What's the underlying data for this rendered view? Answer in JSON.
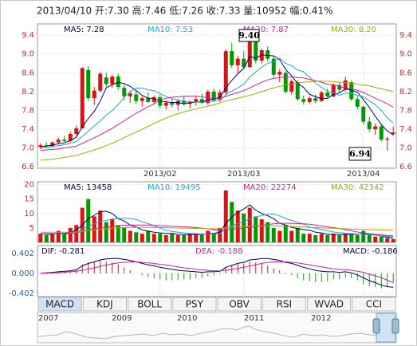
{
  "header": "2013/04/10 开:7.30 高:7.46 低:7.26 收:7.33 量:10952 幅:0.41%",
  "chart_data": [
    {
      "type": "candlestick",
      "categories": [
        null,
        null,
        null,
        null,
        null,
        null,
        null,
        null,
        null,
        null,
        null,
        null,
        null,
        null,
        null,
        null,
        null,
        null,
        null,
        null,
        "2013/02",
        null,
        null,
        null,
        null,
        null,
        null,
        null,
        null,
        null,
        null,
        null,
        null,
        null,
        "2013/03",
        null,
        null,
        null,
        null,
        null,
        null,
        null,
        null,
        null,
        null,
        null,
        null,
        null,
        null,
        null,
        null,
        null,
        null,
        null,
        "2013/04",
        null,
        null,
        null,
        null,
        null
      ],
      "open": [
        7.02,
        7.06,
        7.04,
        7.12,
        7.18,
        7.15,
        7.3,
        7.42,
        8.66,
        8.06,
        8.22,
        8.5,
        8.36,
        8.52,
        8.28,
        8.1,
        8.14,
        8.0,
        8.06,
        7.98,
        8.08,
        7.9,
        7.96,
        7.92,
        8.0,
        7.94,
        7.98,
        8.04,
        7.96,
        8.2,
        8.02,
        8.18,
        9.06,
        8.76,
        8.9,
        8.72,
        9.3,
        8.86,
        9.08,
        8.9,
        8.56,
        8.6,
        8.2,
        8.4,
        8.04,
        7.98,
        8.06,
        8.0,
        8.18,
        8.1,
        8.34,
        8.24,
        8.4,
        8.04,
        7.88,
        7.56,
        7.4,
        7.46,
        7.18,
        7.3
      ],
      "high": [
        7.1,
        7.12,
        7.14,
        7.22,
        7.26,
        7.34,
        7.48,
        8.72,
        8.74,
        8.3,
        8.62,
        8.6,
        8.56,
        8.58,
        8.34,
        8.22,
        8.2,
        8.1,
        8.18,
        8.12,
        8.14,
        8.02,
        8.06,
        8.04,
        8.1,
        8.02,
        8.12,
        8.16,
        8.24,
        8.26,
        8.24,
        9.1,
        9.24,
        8.96,
        9.06,
        9.4,
        9.36,
        9.12,
        9.16,
        8.96,
        8.68,
        8.64,
        8.46,
        8.44,
        8.12,
        8.1,
        8.14,
        8.22,
        8.26,
        8.38,
        8.4,
        8.52,
        8.44,
        8.1,
        7.9,
        7.66,
        7.52,
        7.5,
        7.24,
        7.46
      ],
      "low": [
        6.98,
        7.0,
        7.02,
        7.08,
        7.12,
        7.12,
        7.26,
        7.42,
        8.0,
        7.92,
        8.18,
        8.3,
        8.28,
        8.24,
        8.02,
        7.96,
        7.94,
        7.88,
        7.96,
        7.92,
        7.84,
        7.82,
        7.86,
        7.8,
        7.9,
        7.84,
        7.9,
        7.94,
        7.92,
        7.98,
        7.98,
        8.14,
        8.7,
        8.6,
        8.68,
        8.7,
        8.8,
        8.8,
        8.84,
        8.5,
        8.4,
        8.16,
        8.14,
        8.0,
        7.92,
        7.94,
        7.96,
        7.98,
        8.06,
        8.08,
        8.18,
        8.2,
        8.0,
        7.82,
        7.5,
        7.34,
        7.28,
        7.14,
        6.94,
        7.26
      ],
      "close": [
        7.06,
        7.04,
        7.12,
        7.18,
        7.15,
        7.3,
        7.42,
        8.7,
        8.06,
        8.22,
        8.58,
        8.36,
        8.52,
        8.3,
        8.1,
        8.16,
        8.0,
        8.06,
        7.98,
        8.08,
        7.9,
        7.96,
        7.92,
        8.0,
        7.94,
        7.98,
        8.04,
        7.96,
        8.2,
        8.02,
        8.18,
        9.06,
        8.76,
        8.9,
        8.72,
        9.3,
        8.86,
        9.08,
        8.9,
        8.56,
        8.62,
        8.2,
        8.42,
        8.04,
        7.98,
        8.06,
        8.0,
        8.18,
        8.1,
        8.34,
        8.24,
        8.44,
        8.04,
        7.88,
        7.56,
        7.4,
        7.46,
        7.18,
        7.2,
        7.33
      ],
      "up_color": "#e01010",
      "down_color": "#009a00",
      "series": [
        {
          "name": "MA5",
          "label": "MA5: 7.28",
          "color": "#000066",
          "values": [
            7.03,
            7.04,
            7.06,
            7.09,
            7.11,
            7.16,
            7.23,
            7.45,
            7.63,
            7.78,
            8.0,
            8.28,
            8.35,
            8.4,
            8.37,
            8.31,
            8.22,
            8.12,
            8.06,
            8.06,
            8.0,
            7.98,
            7.97,
            7.97,
            7.94,
            7.96,
            7.98,
            7.98,
            8.02,
            8.04,
            8.08,
            8.28,
            8.44,
            8.58,
            8.7,
            8.95,
            8.91,
            8.98,
            8.97,
            8.96,
            8.88,
            8.67,
            8.54,
            8.37,
            8.29,
            8.14,
            8.09,
            8.05,
            8.06,
            8.14,
            8.17,
            8.26,
            8.23,
            8.19,
            8.03,
            7.86,
            7.67,
            7.5,
            7.36,
            7.28
          ]
        },
        {
          "name": "MA10",
          "label": "MA10: 7.53",
          "color": "#1aa8d8",
          "values": [
            7.0,
            7.01,
            7.03,
            7.05,
            7.07,
            7.1,
            7.14,
            7.25,
            7.36,
            7.47,
            7.58,
            7.7,
            7.8,
            7.92,
            8.08,
            8.2,
            8.28,
            8.27,
            8.24,
            8.22,
            8.16,
            8.1,
            8.05,
            8.02,
            8.0,
            7.98,
            7.98,
            7.97,
            7.99,
            8.0,
            8.03,
            8.13,
            8.21,
            8.28,
            8.36,
            8.51,
            8.62,
            8.72,
            8.8,
            8.84,
            8.91,
            8.8,
            8.75,
            8.66,
            8.62,
            8.51,
            8.38,
            8.29,
            8.21,
            8.17,
            8.12,
            8.17,
            8.16,
            8.12,
            8.09,
            8.0,
            7.92,
            7.8,
            7.64,
            7.53
          ]
        },
        {
          "name": "MA20",
          "label": "MA20: 7.87",
          "color": "#d0209a",
          "values": [
            6.95,
            6.96,
            6.97,
            6.98,
            7.0,
            7.02,
            7.04,
            7.1,
            7.16,
            7.22,
            7.28,
            7.35,
            7.42,
            7.5,
            7.58,
            7.66,
            7.74,
            7.81,
            7.88,
            7.94,
            8.02,
            8.06,
            8.08,
            8.09,
            8.1,
            8.1,
            8.1,
            8.09,
            8.07,
            8.06,
            8.05,
            8.1,
            8.14,
            8.18,
            8.22,
            8.28,
            8.34,
            8.4,
            8.45,
            8.48,
            8.5,
            8.51,
            8.51,
            8.5,
            8.49,
            8.46,
            8.43,
            8.4,
            8.36,
            8.34,
            8.31,
            8.28,
            8.26,
            8.23,
            8.18,
            8.12,
            8.06,
            8.0,
            7.94,
            7.87
          ]
        },
        {
          "name": "MA30",
          "label": "MA30: 8.20",
          "color": "#a8a800",
          "values": [
            6.74,
            6.75,
            6.76,
            6.78,
            6.8,
            6.82,
            6.84,
            6.88,
            6.92,
            6.96,
            7.0,
            7.05,
            7.1,
            7.16,
            7.22,
            7.28,
            7.34,
            7.4,
            7.46,
            7.52,
            7.58,
            7.64,
            7.69,
            7.73,
            7.77,
            7.8,
            7.83,
            7.86,
            7.89,
            7.92,
            7.96,
            8.0,
            8.03,
            8.06,
            8.09,
            8.12,
            8.16,
            8.2,
            8.24,
            8.28,
            8.31,
            8.34,
            8.36,
            8.38,
            8.4,
            8.41,
            8.42,
            8.42,
            8.42,
            8.41,
            8.4,
            8.39,
            8.38,
            8.36,
            8.34,
            8.32,
            8.29,
            8.26,
            8.23,
            8.2
          ]
        }
      ],
      "annotations": [
        {
          "text": "9.40"
        },
        {
          "text": "6.94"
        }
      ],
      "ylim": [
        6.57,
        9.64
      ],
      "yticks": [
        6.6,
        {
          "value": 7,
          "label": "7.0"
        },
        7.4,
        7.8,
        8.2,
        8.6,
        {
          "value": 9,
          "label": "9.0"
        },
        9.4
      ],
      "right_axis": true,
      "grid": true,
      "tick_color": "#c03030"
    },
    {
      "type": "bar",
      "values": [
        3,
        2.5,
        3,
        4,
        3,
        5,
        6,
        12,
        15,
        9,
        11,
        7,
        8,
        6,
        5,
        4,
        3.5,
        3,
        4,
        3,
        3,
        2.5,
        3,
        2.5,
        2.5,
        3,
        3,
        2.5,
        4,
        3,
        5,
        18,
        14,
        11,
        10,
        12,
        9,
        8,
        7,
        5,
        4,
        6,
        4,
        5,
        3,
        3,
        2.5,
        3,
        2.5,
        3,
        2.5,
        3,
        3,
        2.5,
        4,
        3,
        2,
        2,
        1.5,
        1.1
      ],
      "up_color": "#e01010",
      "down_color": "#009a00",
      "series": [
        {
          "name": "MA5",
          "label": "MA5: 13458",
          "color": "#000066",
          "values": [
            3,
            2.8,
            2.8,
            3.1,
            3.1,
            3.5,
            4.2,
            6,
            8.2,
            9.4,
            10.6,
            10.8,
            10,
            8.2,
            7.4,
            6,
            5.3,
            4.3,
            3.9,
            3.5,
            3.3,
            3.1,
            3.1,
            2.8,
            2.7,
            2.7,
            2.8,
            2.7,
            3,
            3.1,
            3.5,
            6.6,
            8.8,
            10.4,
            11.6,
            13,
            11.2,
            10,
            9.2,
            8.2,
            6.6,
            6,
            5.2,
            4.8,
            4.4,
            4.2,
            3.5,
            3.3,
            2.8,
            2.8,
            2.7,
            2.8,
            2.8,
            2.8,
            3,
            2.9,
            2.6,
            2.2,
            1.8,
            1.35
          ]
        },
        {
          "name": "MA10",
          "label": "MA10: 19495",
          "color": "#1aa8d8",
          "values": [
            3,
            3,
            3,
            3,
            3,
            3.2,
            3.5,
            4.5,
            5.6,
            6.4,
            7.3,
            7.6,
            8.1,
            8.3,
            8.4,
            8.3,
            7.9,
            7.1,
            6.5,
            5.8,
            4.9,
            4.2,
            3.8,
            3.5,
            3.3,
            3.1,
            3,
            2.9,
            2.9,
            2.9,
            3.1,
            4.6,
            5.8,
            6.5,
            7.2,
            8.2,
            8.8,
            9.3,
            9.7,
            9.8,
            9.2,
            8.3,
            7.6,
            7,
            6.3,
            5.3,
            4.9,
            4.4,
            4,
            3.6,
            3.4,
            3.1,
            3,
            2.9,
            2.8,
            2.7,
            2.5,
            2.3,
            2.1,
            1.95
          ]
        },
        {
          "name": "MA20",
          "label": "MA20: 22274",
          "color": "#d0209a",
          "values": [
            3,
            3,
            3,
            3,
            3,
            3.1,
            3.3,
            3.8,
            4.3,
            4.7,
            5.1,
            5.3,
            5.6,
            5.8,
            5.9,
            6,
            6,
            6,
            6,
            5.9,
            5.8,
            5.7,
            5.6,
            5.5,
            5.4,
            5.3,
            5.1,
            4.9,
            4.7,
            4.4,
            4.1,
            4.3,
            4.6,
            4.8,
            5,
            5.3,
            5.6,
            5.9,
            6.2,
            6.4,
            6.6,
            6.6,
            6.6,
            6.5,
            6.4,
            6.3,
            6,
            5.7,
            5.4,
            5.1,
            4.8,
            4.4,
            4,
            3.6,
            3.3,
            3,
            2.8,
            2.6,
            2.4,
            2.23
          ]
        },
        {
          "name": "MA30",
          "label": "MA30: 42342",
          "color": "#a8a800",
          "values": [
            3.5,
            3.5,
            3.5,
            3.5,
            3.5,
            3.5,
            3.6,
            3.8,
            4.1,
            4.3,
            4.5,
            4.7,
            4.9,
            5,
            5.1,
            5.2,
            5.2,
            5.2,
            5.2,
            5.2,
            5.1,
            5.1,
            5,
            5,
            4.9,
            4.9,
            4.8,
            4.8,
            4.7,
            4.7,
            4.7,
            5,
            5.2,
            5.4,
            5.5,
            5.6,
            5.7,
            5.7,
            5.7,
            5.7,
            5.6,
            5.6,
            5.5,
            5.4,
            5.3,
            5.2,
            5.1,
            5,
            4.9,
            4.9,
            4.8,
            4.7,
            4.6,
            4.6,
            4.5,
            4.4,
            4.4,
            4.3,
            4.3,
            4.23
          ]
        }
      ],
      "ylim": [
        0,
        21
      ],
      "yticks": [
        5,
        10,
        15,
        20
      ],
      "grid": true,
      "tick_color": "#c03030"
    },
    {
      "type": "macd",
      "histogram": [
        0,
        0.02,
        0.02,
        0.04,
        0.04,
        0.04,
        0.06,
        0.18,
        0.22,
        0.24,
        0.26,
        0.24,
        0.22,
        0.18,
        0.12,
        0.06,
        0,
        -0.04,
        -0.08,
        -0.1,
        -0.12,
        -0.14,
        -0.14,
        -0.14,
        -0.12,
        -0.12,
        -0.1,
        -0.1,
        -0.06,
        -0.04,
        -0.02,
        0.12,
        0.16,
        0.2,
        0.2,
        0.24,
        0.22,
        0.2,
        0.16,
        0.1,
        0.06,
        -0.02,
        -0.04,
        -0.1,
        -0.14,
        -0.16,
        -0.18,
        -0.18,
        -0.16,
        -0.12,
        -0.12,
        -0.08,
        -0.1,
        -0.14,
        -0.22,
        -0.26,
        -0.28,
        -0.3,
        -0.26,
        -0.186
      ],
      "histogram_label": "MACD: -0.186",
      "up_color": "#c02020",
      "down_color": "#10a010",
      "series": [
        {
          "name": "DIF",
          "label": "DIF: -0.281",
          "color": "#000066",
          "values": [
            0,
            0.01,
            0.02,
            0.03,
            0.04,
            0.05,
            0.07,
            0.15,
            0.2,
            0.23,
            0.27,
            0.29,
            0.3,
            0.3,
            0.28,
            0.26,
            0.23,
            0.2,
            0.17,
            0.15,
            0.12,
            0.1,
            0.08,
            0.06,
            0.05,
            0.04,
            0.03,
            0.02,
            0.03,
            0.03,
            0.04,
            0.12,
            0.16,
            0.2,
            0.22,
            0.27,
            0.28,
            0.3,
            0.3,
            0.28,
            0.26,
            0.22,
            0.2,
            0.16,
            0.12,
            0.09,
            0.06,
            0.04,
            0.03,
            0.03,
            0.02,
            0.03,
            0.01,
            -0.03,
            -0.09,
            -0.15,
            -0.19,
            -0.24,
            -0.27,
            -0.281
          ]
        },
        {
          "name": "DEA",
          "label": "DEA: -0.188",
          "color": "#d0209a",
          "values": [
            0,
            0,
            0.01,
            0.01,
            0.02,
            0.03,
            0.04,
            0.06,
            0.09,
            0.11,
            0.14,
            0.17,
            0.19,
            0.21,
            0.22,
            0.23,
            0.23,
            0.22,
            0.21,
            0.2,
            0.18,
            0.17,
            0.15,
            0.13,
            0.11,
            0.1,
            0.08,
            0.07,
            0.06,
            0.05,
            0.05,
            0.06,
            0.08,
            0.1,
            0.12,
            0.15,
            0.17,
            0.2,
            0.22,
            0.23,
            0.23,
            0.23,
            0.22,
            0.21,
            0.19,
            0.17,
            0.15,
            0.13,
            0.11,
            0.09,
            0.08,
            0.07,
            0.06,
            0.04,
            0.02,
            -0.02,
            -0.05,
            -0.09,
            -0.14,
            -0.188
          ]
        }
      ],
      "ylim": [
        -0.47,
        0.56
      ],
      "yticks": [
        0.402,
        {
          "value": 0,
          "label": "0.000"
        },
        -0.402
      ],
      "grid": true,
      "tick_color": "#2a5ea0"
    }
  ],
  "tabs": [
    "MACD",
    "KDJ",
    "BOLL",
    "PSY",
    "OBV",
    "RSI",
    "WVAD",
    "CCI"
  ],
  "overview": {
    "years": [
      "2007",
      "2009",
      "2010",
      "2011",
      "2012"
    ]
  }
}
